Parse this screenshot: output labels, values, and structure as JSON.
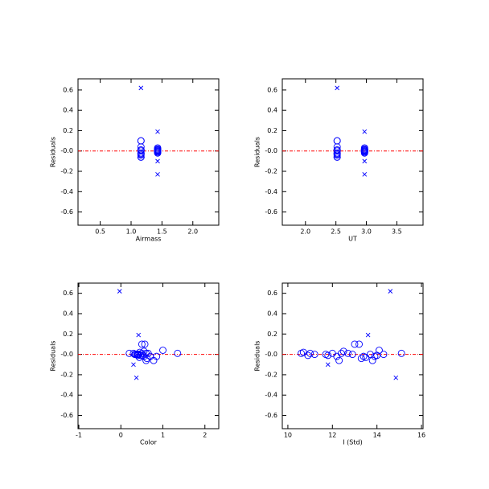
{
  "chart_data": [
    {
      "type": "scatter",
      "xlabel": "Airmass",
      "ylabel": "Residuals",
      "xlim": [
        0.14,
        2.42
      ],
      "ylim": [
        -0.73,
        0.71
      ],
      "xticks": [
        0.5,
        {
          "value": 1,
          "label": "1.0"
        },
        1.5,
        {
          "value": 2,
          "label": "2.0"
        }
      ],
      "yticks": [
        0.6,
        0.4,
        0.2,
        {
          "value": 0,
          "label": "-0.0"
        },
        -0.2,
        -0.4,
        -0.6
      ],
      "hline": 0,
      "hline_color": "#ff0000",
      "series": [
        {
          "marker": "circle",
          "color": "#0000ff",
          "x": [
            1.43,
            1.43,
            1.43,
            1.43,
            1.43,
            1.43,
            1.43,
            1.16,
            1.16,
            1.16,
            1.43,
            1.43,
            1.43,
            1.43,
            1.16,
            1.16,
            1.16,
            1.16,
            1.16,
            1.16,
            1.16,
            1.43,
            1.43,
            1.16,
            1.43,
            1.16
          ],
          "values": [
            0.01,
            0.02,
            -0.01,
            0.01,
            0.0,
            0.0,
            -0.01,
            0.01,
            -0.02,
            -0.06,
            0.01,
            0.03,
            0.01,
            0.0,
            0.1,
            0.1,
            -0.04,
            -0.02,
            -0.03,
            0.0,
            -0.06,
            -0.02,
            -0.01,
            0.04,
            0.0,
            0.01
          ]
        },
        {
          "marker": "cross",
          "color": "#0000ff",
          "x": [
            1.16,
            1.43,
            1.43,
            1.43
          ],
          "values": [
            0.62,
            0.19,
            -0.1,
            -0.23
          ]
        }
      ]
    },
    {
      "type": "scatter",
      "xlabel": "UT",
      "ylabel": "Residuals",
      "xlim": [
        1.62,
        3.93
      ],
      "ylim": [
        -0.73,
        0.71
      ],
      "xticks": [
        {
          "value": 2,
          "label": "2.0"
        },
        2.5,
        {
          "value": 3,
          "label": "3.0"
        },
        3.5
      ],
      "yticks": [
        0.6,
        0.4,
        0.2,
        {
          "value": 0,
          "label": "-0.0"
        },
        -0.2,
        -0.4,
        -0.6
      ],
      "hline": 0,
      "hline_color": "#ff0000",
      "series": [
        {
          "marker": "circle",
          "color": "#0000ff",
          "x": [
            2.97,
            2.97,
            2.97,
            2.97,
            2.97,
            2.97,
            2.97,
            2.52,
            2.52,
            2.52,
            2.97,
            2.97,
            2.97,
            2.97,
            2.52,
            2.52,
            2.52,
            2.52,
            2.52,
            2.52,
            2.52,
            2.97,
            2.97,
            2.52,
            2.97,
            2.52
          ],
          "values": [
            0.01,
            0.02,
            -0.01,
            0.01,
            0.0,
            0.0,
            -0.01,
            0.01,
            -0.02,
            -0.06,
            0.01,
            0.03,
            0.01,
            0.0,
            0.1,
            0.1,
            -0.04,
            -0.02,
            -0.03,
            0.0,
            -0.06,
            -0.02,
            -0.01,
            0.04,
            0.0,
            0.01
          ]
        },
        {
          "marker": "cross",
          "color": "#0000ff",
          "x": [
            2.52,
            2.97,
            2.97,
            2.97
          ],
          "values": [
            0.62,
            0.19,
            -0.1,
            -0.23
          ]
        }
      ]
    },
    {
      "type": "scatter",
      "xlabel": "Color",
      "ylabel": "Residuals",
      "xlim": [
        -1.02,
        2.33
      ],
      "ylim": [
        -0.73,
        0.7
      ],
      "xticks": [
        -1,
        0,
        1,
        2
      ],
      "yticks": [
        0.6,
        0.4,
        0.2,
        {
          "value": 0,
          "label": "-0.0"
        },
        -0.2,
        -0.4,
        -0.6
      ],
      "hline": 0,
      "hline_color": "#ff0000",
      "series": [
        {
          "marker": "circle",
          "color": "#0000ff",
          "x": [
            0.2,
            0.45,
            0.52,
            0.3,
            0.38,
            0.42,
            0.47,
            0.5,
            0.55,
            0.78,
            0.6,
            0.55,
            0.65,
            0.35,
            0.5,
            0.57,
            0.62,
            0.7,
            0.44,
            0.4,
            0.6,
            0.85,
            0.4,
            1.0,
            0.33,
            1.35
          ],
          "values": [
            0.01,
            0.02,
            -0.01,
            0.01,
            0.0,
            0.0,
            -0.01,
            0.01,
            -0.02,
            -0.06,
            0.01,
            0.03,
            0.01,
            0.0,
            0.1,
            0.1,
            -0.04,
            -0.02,
            -0.03,
            0.0,
            -0.06,
            -0.02,
            -0.01,
            0.04,
            0.0,
            0.01
          ]
        },
        {
          "marker": "cross",
          "color": "#0000ff",
          "x": [
            -0.03,
            0.42,
            0.3,
            0.37
          ],
          "values": [
            0.62,
            0.19,
            -0.1,
            -0.23
          ]
        }
      ]
    },
    {
      "type": "scatter",
      "xlabel": "I (Std)",
      "ylabel": "Residuals",
      "xlim": [
        9.75,
        16.07
      ],
      "ylim": [
        -0.73,
        0.7
      ],
      "xticks": [
        10,
        12,
        14,
        16
      ],
      "yticks": [
        0.6,
        0.4,
        0.2,
        {
          "value": 0,
          "label": "-0.0"
        },
        -0.2,
        -0.4,
        -0.6
      ],
      "hline": 0,
      "hline_color": "#ff0000",
      "series": [
        {
          "marker": "circle",
          "color": "#0000ff",
          "x": [
            10.6,
            10.7,
            10.9,
            11.0,
            11.2,
            11.7,
            11.8,
            12.0,
            12.2,
            12.3,
            12.4,
            12.5,
            12.7,
            12.9,
            13.0,
            13.2,
            13.3,
            13.4,
            13.5,
            13.7,
            13.8,
            13.9,
            14.0,
            14.1,
            14.3,
            15.1
          ],
          "values": [
            0.01,
            0.02,
            -0.01,
            0.01,
            0.0,
            0.0,
            -0.01,
            0.01,
            -0.02,
            -0.06,
            0.01,
            0.03,
            0.01,
            0.0,
            0.1,
            0.1,
            -0.04,
            -0.02,
            -0.03,
            0.0,
            -0.06,
            -0.02,
            -0.01,
            0.04,
            0.0,
            0.01
          ]
        },
        {
          "marker": "cross",
          "color": "#0000ff",
          "x": [
            14.6,
            13.6,
            11.8,
            14.85
          ],
          "values": [
            0.62,
            0.19,
            -0.1,
            -0.23
          ]
        }
      ]
    }
  ]
}
